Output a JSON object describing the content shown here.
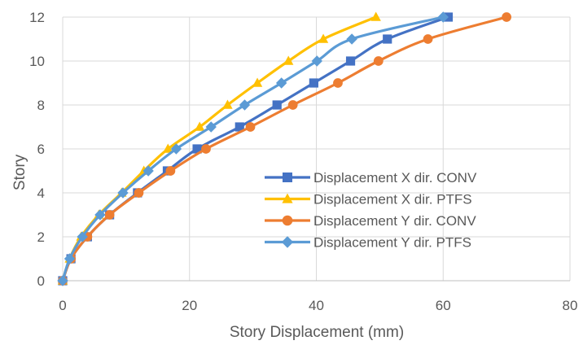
{
  "chart_data": {
    "type": "line",
    "xlabel": "Story Displacement (mm)",
    "ylabel": "Story",
    "xlim": [
      0,
      80
    ],
    "ylim": [
      0,
      12
    ],
    "xticks": [
      0,
      20,
      40,
      60,
      80
    ],
    "yticks": [
      0,
      2,
      4,
      6,
      8,
      10,
      12
    ],
    "grid": true,
    "legend_position": "bottom-right",
    "series": [
      {
        "name": "Displacement X dir. CONV",
        "color": "#4472C4",
        "marker": "square",
        "x": [
          0,
          1.3,
          3.9,
          7.4,
          11.8,
          16.5,
          21.2,
          27.9,
          33.8,
          39.6,
          45.4,
          51.2,
          60.8
        ],
        "y": [
          0,
          1,
          2,
          3,
          4,
          5,
          6,
          7,
          8,
          9,
          10,
          11,
          12
        ]
      },
      {
        "name": "Displacement X dir. PTFS",
        "color": "#FFC000",
        "marker": "triangle",
        "x": [
          0,
          1.1,
          2.9,
          5.7,
          9.3,
          12.8,
          16.6,
          21.6,
          26.0,
          30.7,
          35.6,
          41.1,
          49.4
        ],
        "y": [
          0,
          1,
          2,
          3,
          4,
          5,
          6,
          7,
          8,
          9,
          10,
          11,
          12
        ]
      },
      {
        "name": "Displacement Y dir. CONV",
        "color": "#ED7D31",
        "marker": "circle",
        "x": [
          0,
          1.3,
          3.9,
          7.4,
          12.0,
          17.0,
          22.6,
          29.6,
          36.3,
          43.4,
          49.8,
          57.6,
          70.0
        ],
        "y": [
          0,
          1,
          2,
          3,
          4,
          5,
          6,
          7,
          8,
          9,
          10,
          11,
          12
        ]
      },
      {
        "name": "Displacement Y dir. PTFS",
        "color": "#5B9BD5",
        "marker": "diamond",
        "x": [
          0,
          1.1,
          3.1,
          5.9,
          9.5,
          13.5,
          17.9,
          23.4,
          28.7,
          34.5,
          40.1,
          45.6,
          60.0
        ],
        "y": [
          0,
          1,
          2,
          3,
          4,
          5,
          6,
          7,
          8,
          9,
          10,
          11,
          12
        ]
      }
    ]
  }
}
